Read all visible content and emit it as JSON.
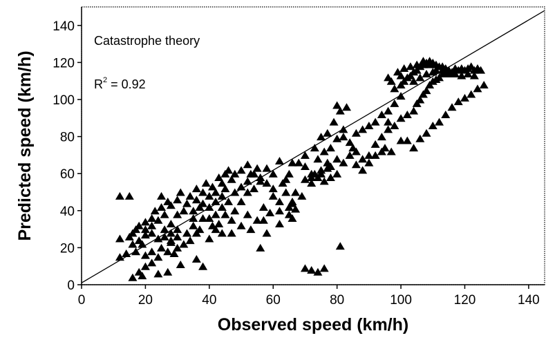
{
  "chart_data": {
    "type": "scatter",
    "title": "",
    "xlabel": "Observed speed  (km/h)",
    "ylabel": "Predicted speed (km/h)",
    "xlim": [
      0,
      145
    ],
    "ylim": [
      0,
      150
    ],
    "xticks": [
      "0",
      "20",
      "40",
      "60",
      "80",
      "100",
      "120",
      "140"
    ],
    "yticks": [
      "0",
      "20",
      "40",
      "60",
      "80",
      "100",
      "120",
      "140"
    ],
    "grid": false,
    "marker": "filled-triangle",
    "color": "#000000",
    "annotations": {
      "label": "Catastrophe theory",
      "r2_prefix": "R",
      "r2_superscript": "2",
      "r2_value": " = 0.92"
    },
    "fit_line": {
      "x": [
        0,
        145
      ],
      "y": [
        1,
        148
      ]
    },
    "series": [
      {
        "points": [
          [
            12,
            48
          ],
          [
            15,
            48
          ],
          [
            12,
            25
          ],
          [
            12,
            15
          ],
          [
            14,
            17
          ],
          [
            16,
            28
          ],
          [
            17,
            30
          ],
          [
            18,
            32
          ],
          [
            15,
            26
          ],
          [
            16,
            22
          ],
          [
            18,
            24
          ],
          [
            20,
            27
          ],
          [
            20,
            34
          ],
          [
            22,
            36
          ],
          [
            23,
            40
          ],
          [
            24,
            35
          ],
          [
            25,
            42
          ],
          [
            26,
            38
          ],
          [
            25,
            48
          ],
          [
            27,
            45
          ],
          [
            28,
            43
          ],
          [
            26,
            30
          ],
          [
            22,
            28
          ],
          [
            24,
            25
          ],
          [
            28,
            33
          ],
          [
            30,
            38
          ],
          [
            30,
            46
          ],
          [
            32,
            40
          ],
          [
            33,
            44
          ],
          [
            31,
            50
          ],
          [
            34,
            48
          ],
          [
            36,
            46
          ],
          [
            35,
            40
          ],
          [
            37,
            42
          ],
          [
            38,
            50
          ],
          [
            36,
            52
          ],
          [
            39,
            55
          ],
          [
            40,
            48
          ],
          [
            41,
            53
          ],
          [
            42,
            50
          ],
          [
            43,
            58
          ],
          [
            44,
            55
          ],
          [
            45,
            60
          ],
          [
            46,
            62
          ],
          [
            47,
            57
          ],
          [
            48,
            60
          ],
          [
            50,
            62
          ],
          [
            52,
            65
          ],
          [
            53,
            60
          ],
          [
            55,
            63
          ],
          [
            56,
            58
          ],
          [
            58,
            63
          ],
          [
            60,
            60
          ],
          [
            62,
            67
          ],
          [
            63,
            55
          ],
          [
            65,
            60
          ],
          [
            66,
            66
          ],
          [
            44,
            48
          ],
          [
            45,
            52
          ],
          [
            42,
            45
          ],
          [
            38,
            44
          ],
          [
            40,
            42
          ],
          [
            35,
            36
          ],
          [
            30,
            30
          ],
          [
            28,
            28
          ],
          [
            26,
            26
          ],
          [
            22,
            32
          ],
          [
            20,
            30
          ],
          [
            19,
            22
          ],
          [
            17,
            18
          ],
          [
            20,
            16
          ],
          [
            22,
            18
          ],
          [
            25,
            20
          ],
          [
            28,
            23
          ],
          [
            30,
            26
          ],
          [
            33,
            28
          ],
          [
            35,
            32
          ],
          [
            37,
            30
          ],
          [
            40,
            36
          ],
          [
            42,
            38
          ],
          [
            44,
            42
          ],
          [
            46,
            45
          ],
          [
            48,
            50
          ],
          [
            50,
            53
          ],
          [
            52,
            50
          ],
          [
            54,
            52
          ],
          [
            56,
            56
          ],
          [
            58,
            55
          ],
          [
            60,
            52
          ],
          [
            50,
            45
          ],
          [
            48,
            40
          ],
          [
            45,
            38
          ],
          [
            43,
            33
          ],
          [
            41,
            32
          ],
          [
            38,
            36
          ],
          [
            36,
            28
          ],
          [
            34,
            24
          ],
          [
            32,
            22
          ],
          [
            30,
            20
          ],
          [
            28,
            24
          ],
          [
            27,
            18
          ],
          [
            24,
            15
          ],
          [
            22,
            12
          ],
          [
            20,
            10
          ],
          [
            18,
            7
          ],
          [
            16,
            4
          ],
          [
            19,
            5
          ],
          [
            24,
            6
          ],
          [
            27,
            7
          ],
          [
            29,
            17
          ],
          [
            31,
            11
          ],
          [
            36,
            14
          ],
          [
            38,
            10
          ],
          [
            40,
            25
          ],
          [
            42,
            30
          ],
          [
            44,
            28
          ],
          [
            47,
            35
          ],
          [
            52,
            38
          ],
          [
            57,
            35
          ],
          [
            59,
            39
          ],
          [
            62,
            40
          ],
          [
            65,
            42
          ],
          [
            66,
            45
          ],
          [
            67,
            41
          ],
          [
            66,
            44
          ],
          [
            65,
            38
          ],
          [
            67,
            50
          ],
          [
            69,
            48
          ],
          [
            70,
            57
          ],
          [
            72,
            58
          ],
          [
            73,
            60
          ],
          [
            75,
            62
          ],
          [
            77,
            63
          ],
          [
            74,
            68
          ],
          [
            76,
            72
          ],
          [
            78,
            74
          ],
          [
            80,
            79
          ],
          [
            82,
            80
          ],
          [
            84,
            77
          ],
          [
            86,
            82
          ],
          [
            88,
            84
          ],
          [
            90,
            86
          ],
          [
            92,
            88
          ],
          [
            94,
            92
          ],
          [
            96,
            94
          ],
          [
            98,
            98
          ],
          [
            100,
            102
          ],
          [
            68,
            66
          ],
          [
            70,
            70
          ],
          [
            73,
            74
          ],
          [
            75,
            80
          ],
          [
            77,
            82
          ],
          [
            79,
            88
          ],
          [
            81,
            94
          ],
          [
            83,
            96
          ],
          [
            80,
            97
          ],
          [
            82,
            84
          ],
          [
            85,
            74
          ],
          [
            88,
            68
          ],
          [
            90,
            70
          ],
          [
            92,
            76
          ],
          [
            94,
            80
          ],
          [
            96,
            84
          ],
          [
            95,
            74
          ],
          [
            97,
            72
          ],
          [
            100,
            78
          ],
          [
            102,
            78
          ],
          [
            104,
            74
          ],
          [
            106,
            79
          ],
          [
            108,
            82
          ],
          [
            110,
            86
          ],
          [
            112,
            88
          ],
          [
            114,
            92
          ],
          [
            116,
            96
          ],
          [
            118,
            99
          ],
          [
            120,
            101
          ],
          [
            122,
            103
          ],
          [
            124,
            106
          ],
          [
            126,
            108
          ],
          [
            96,
            88
          ],
          [
            98,
            86
          ],
          [
            100,
            90
          ],
          [
            102,
            92
          ],
          [
            104,
            94
          ],
          [
            105,
            98
          ],
          [
            106,
            100
          ],
          [
            107,
            103
          ],
          [
            108,
            105
          ],
          [
            109,
            108
          ],
          [
            110,
            110
          ],
          [
            111,
            111
          ],
          [
            112,
            112
          ],
          [
            113,
            114
          ],
          [
            114,
            115
          ],
          [
            115,
            116
          ],
          [
            116,
            115
          ],
          [
            117,
            117
          ],
          [
            118,
            116
          ],
          [
            119,
            117
          ],
          [
            120,
            116
          ],
          [
            121,
            117
          ],
          [
            122,
            118
          ],
          [
            123,
            116
          ],
          [
            124,
            117
          ],
          [
            125,
            116
          ],
          [
            100,
            108
          ],
          [
            101,
            110
          ],
          [
            102,
            112
          ],
          [
            103,
            113
          ],
          [
            104,
            115
          ],
          [
            105,
            116
          ],
          [
            106,
            118
          ],
          [
            107,
            119
          ],
          [
            108,
            120
          ],
          [
            109,
            121
          ],
          [
            110,
            120
          ],
          [
            111,
            119
          ],
          [
            112,
            118
          ],
          [
            113,
            118
          ],
          [
            114,
            117
          ],
          [
            104,
            110
          ],
          [
            106,
            112
          ],
          [
            108,
            114
          ],
          [
            110,
            115
          ],
          [
            100,
            113
          ],
          [
            98,
            106
          ],
          [
            97,
            110
          ],
          [
            96,
            112
          ],
          [
            99,
            115
          ],
          [
            101,
            117
          ],
          [
            103,
            118
          ],
          [
            105,
            119
          ],
          [
            107,
            121
          ],
          [
            109,
            119
          ],
          [
            111,
            116
          ],
          [
            113,
            116
          ],
          [
            115,
            114
          ],
          [
            117,
            114
          ],
          [
            119,
            113
          ],
          [
            121,
            114
          ],
          [
            123,
            113
          ],
          [
            72,
            8
          ],
          [
            74,
            7
          ],
          [
            70,
            9
          ],
          [
            76,
            9
          ],
          [
            81,
            21
          ],
          [
            66,
            36
          ],
          [
            62,
            33
          ],
          [
            58,
            28
          ],
          [
            56,
            20
          ],
          [
            60,
            48
          ],
          [
            64,
            50
          ],
          [
            52,
            56
          ],
          [
            54,
            60
          ],
          [
            62,
            45
          ],
          [
            57,
            42
          ],
          [
            55,
            35
          ],
          [
            53,
            30
          ],
          [
            50,
            32
          ],
          [
            47,
            28
          ],
          [
            70,
            64
          ],
          [
            72,
            55
          ],
          [
            76,
            56
          ],
          [
            78,
            58
          ],
          [
            80,
            60
          ],
          [
            86,
            65
          ],
          [
            88,
            62
          ],
          [
            90,
            66
          ],
          [
            92,
            70
          ],
          [
            94,
            72
          ],
          [
            84,
            70
          ],
          [
            82,
            66
          ],
          [
            86,
            72
          ],
          [
            80,
            68
          ],
          [
            77,
            66
          ],
          [
            75,
            60
          ],
          [
            78,
            64
          ],
          [
            74,
            58
          ],
          [
            72,
            60
          ],
          [
            64,
            57
          ]
        ]
      }
    ]
  }
}
